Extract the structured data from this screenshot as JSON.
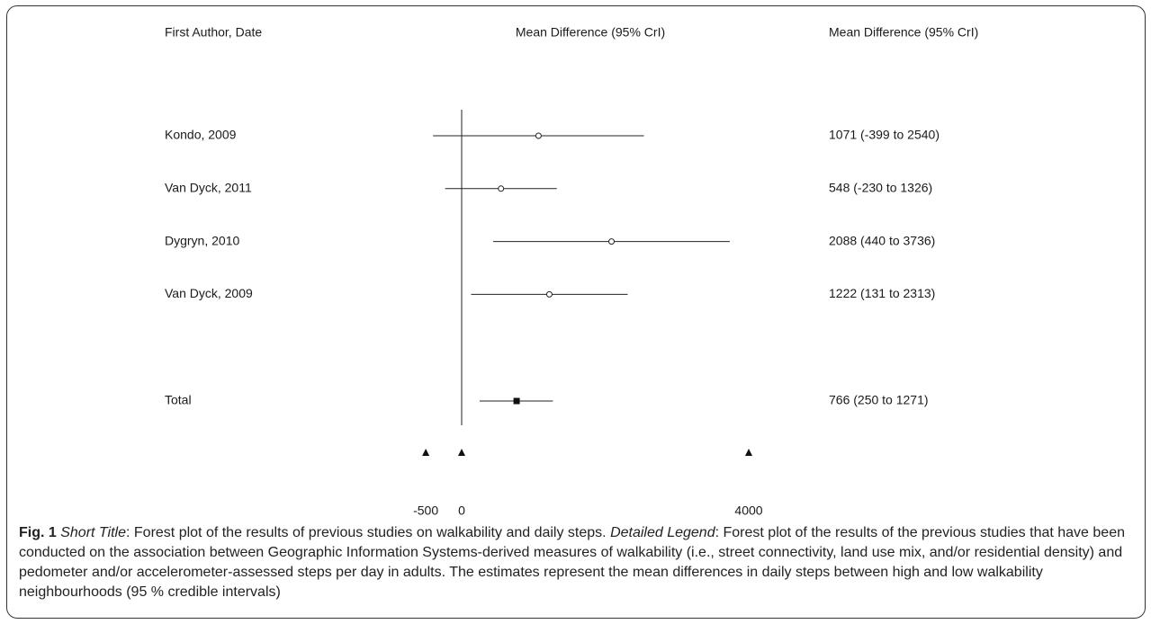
{
  "chart_data": {
    "type": "forest",
    "headers": {
      "study": "First Author, Date",
      "plot": "Mean Difference (95% CrI)",
      "estimate": "Mean Difference (95% CrI)"
    },
    "studies": [
      {
        "label": "Kondo, 2009",
        "estimate": 1071,
        "lower": -399,
        "upper": 2540,
        "text": "1071 (-399 to 2540)"
      },
      {
        "label": "Van Dyck, 2011",
        "estimate": 548,
        "lower": -230,
        "upper": 1326,
        "text": "548 (-230 to 1326)"
      },
      {
        "label": "Dygryn, 2010",
        "estimate": 2088,
        "lower": 440,
        "upper": 3736,
        "text": "2088 (440 to 3736)"
      },
      {
        "label": "Van Dyck, 2009",
        "estimate": 1222,
        "lower": 131,
        "upper": 2313,
        "text": "1222 (131 to 2313)"
      }
    ],
    "total": {
      "label": "Total",
      "estimate": 766,
      "lower": 250,
      "upper": 1271,
      "text": "766 (250 to 1271)"
    },
    "x_ticks": [
      -500,
      0,
      4000
    ],
    "x_tick_labels": [
      "-500",
      "0",
      "4000"
    ],
    "reference_line": 0
  },
  "caption": {
    "fig_label": "Fig. 1",
    "short_title_label": "Short Title",
    "short_title_text": ": Forest plot of the results of previous studies on walkability and daily steps. ",
    "detailed_label": "Detailed Legend",
    "detailed_text": ": Forest plot of the results of the previous studies that have been conducted on the association between Geographic Information Systems-derived measures of walkability (i.e., street connectivity, land use mix, and/or residential density) and pedometer and/or accelerometer-assessed steps per day in adults. The estimates represent the mean differences in daily steps between high and low walkability neighbourhoods (95 % credible intervals)"
  }
}
